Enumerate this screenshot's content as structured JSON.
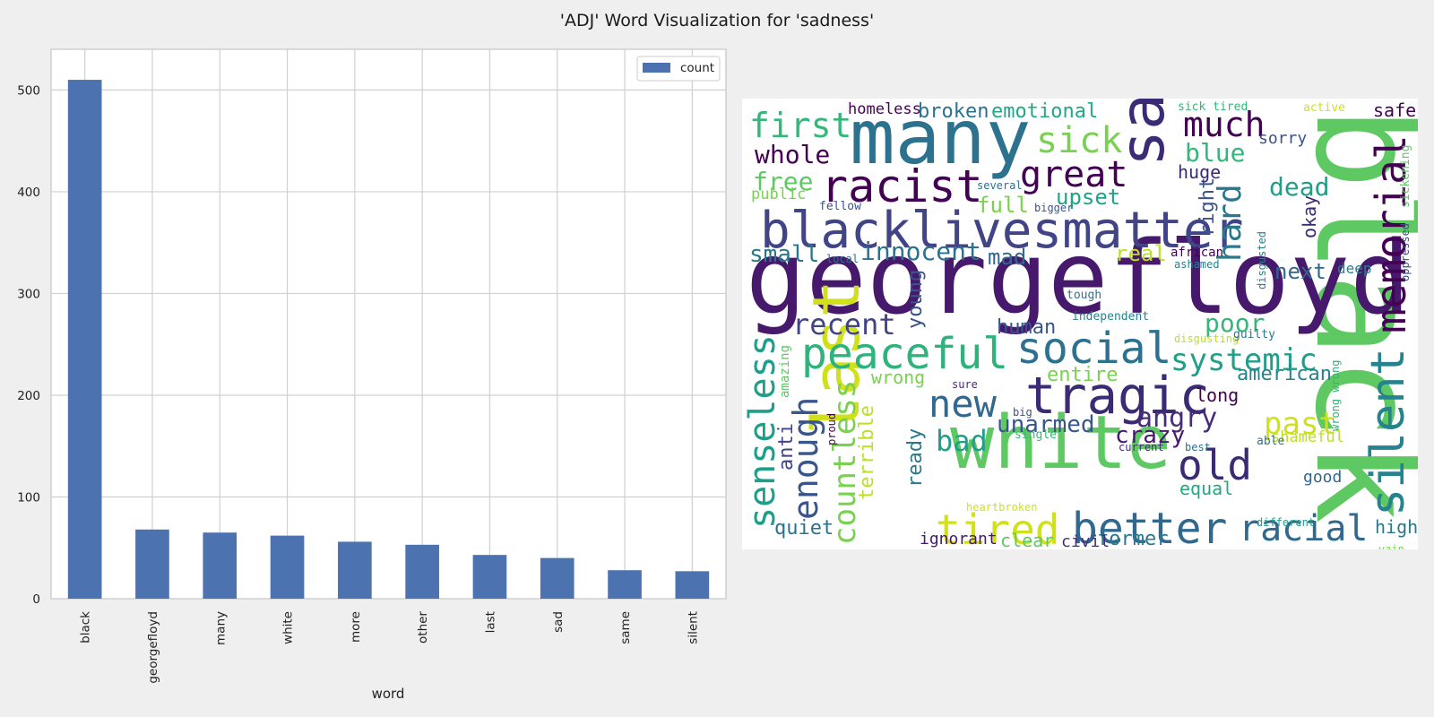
{
  "title": "'ADJ' Word Visualization for 'sadness'",
  "chart_data": [
    {
      "type": "bar",
      "categories": [
        "black",
        "georgefloyd",
        "many",
        "white",
        "more",
        "other",
        "last",
        "sad",
        "same",
        "silent"
      ],
      "series": [
        {
          "name": "count",
          "values": [
            510,
            68,
            65,
            62,
            56,
            53,
            43,
            40,
            28,
            27
          ],
          "color": "#4c72b0"
        }
      ],
      "xlabel": "word",
      "ylabel": "",
      "ylim": [
        0,
        540
      ],
      "yticks": [
        0,
        100,
        200,
        300,
        400,
        500
      ],
      "grid": true,
      "legend": "top-right"
    },
    {
      "type": "wordcloud",
      "colormap": "viridis",
      "words": [
        {
          "text": "black",
          "c": "#5ec962"
        },
        {
          "text": "georgefloyd",
          "c": "#46196c"
        },
        {
          "text": "many",
          "c": "#2c728e"
        },
        {
          "text": "white",
          "c": "#5ec962"
        },
        {
          "text": "last",
          "c": "#d0e11c"
        },
        {
          "text": "sad",
          "c": "#3b2a74"
        },
        {
          "text": "blacklivesmatter",
          "c": "#414487"
        },
        {
          "text": "tragic",
          "c": "#3b2a74"
        },
        {
          "text": "peaceful",
          "c": "#2eb37c"
        },
        {
          "text": "memorial",
          "c": "#440154"
        },
        {
          "text": "silent",
          "c": "#25838e"
        },
        {
          "text": "racist",
          "c": "#440154"
        },
        {
          "text": "social",
          "c": "#2c728e"
        },
        {
          "text": "better",
          "c": "#31688e"
        },
        {
          "text": "tired",
          "c": "#d0e11c"
        },
        {
          "text": "old",
          "c": "#3b2a74"
        },
        {
          "text": "new",
          "c": "#31688e"
        },
        {
          "text": "great",
          "c": "#440154"
        },
        {
          "text": "senseless",
          "c": "#1f9e89"
        },
        {
          "text": "first",
          "c": "#35b779"
        },
        {
          "text": "countless",
          "c": "#7ad151"
        },
        {
          "text": "enough",
          "c": "#39568c"
        },
        {
          "text": "systemic",
          "c": "#1f9e89"
        },
        {
          "text": "racial",
          "c": "#31688e"
        },
        {
          "text": "sick",
          "c": "#7ad151"
        },
        {
          "text": "much",
          "c": "#440154"
        },
        {
          "text": "past",
          "c": "#d0e11c"
        },
        {
          "text": "bad",
          "c": "#1f9e89"
        },
        {
          "text": "recent",
          "c": "#414487"
        },
        {
          "text": "hard",
          "c": "#2a788e"
        },
        {
          "text": "angry",
          "c": "#472c7a"
        },
        {
          "text": "unarmed",
          "c": "#39568c"
        },
        {
          "text": "innocent",
          "c": "#2c728e"
        },
        {
          "text": "whole",
          "c": "#440154"
        },
        {
          "text": "poor",
          "c": "#35b779"
        },
        {
          "text": "crazy",
          "c": "#46196c"
        },
        {
          "text": "blue",
          "c": "#35b779"
        },
        {
          "text": "dead",
          "c": "#1f9e89"
        },
        {
          "text": "free",
          "c": "#5ec962"
        },
        {
          "text": "emotional",
          "c": "#22a884"
        },
        {
          "text": "terrible",
          "c": "#bddf26"
        },
        {
          "text": "human",
          "c": "#39568c"
        },
        {
          "text": "small",
          "c": "#2a788e"
        },
        {
          "text": "upset",
          "c": "#20a486"
        },
        {
          "text": "full",
          "c": "#7ad151"
        },
        {
          "text": "mad",
          "c": "#31688e"
        },
        {
          "text": "next",
          "c": "#31688e"
        },
        {
          "text": "broken",
          "c": "#2c728e"
        },
        {
          "text": "young",
          "c": "#3b528b"
        },
        {
          "text": "ready",
          "c": "#2a788e"
        },
        {
          "text": "anti",
          "c": "#414487"
        },
        {
          "text": "entire",
          "c": "#7ad151"
        },
        {
          "text": "quiet",
          "c": "#2c728e"
        },
        {
          "text": "former",
          "c": "#2a788e"
        },
        {
          "text": "american",
          "c": "#25838e"
        },
        {
          "text": "wrong",
          "c": "#7ad151"
        },
        {
          "text": "real",
          "c": "#bddf26"
        },
        {
          "text": "right",
          "c": "#3b528b"
        },
        {
          "text": "long",
          "c": "#440154"
        },
        {
          "text": "huge",
          "c": "#3b2a74"
        },
        {
          "text": "equal",
          "c": "#22a884"
        },
        {
          "text": "good",
          "c": "#31688e"
        },
        {
          "text": "high",
          "c": "#2a788e"
        },
        {
          "text": "clear",
          "c": "#5ec962"
        },
        {
          "text": "civil",
          "c": "#472c7a"
        },
        {
          "text": "ignorant",
          "c": "#46196c"
        },
        {
          "text": "okay",
          "c": "#3b2a74"
        },
        {
          "text": "safe",
          "c": "#440154"
        },
        {
          "text": "sorry",
          "c": "#3b528b"
        },
        {
          "text": "deep",
          "c": "#25838e"
        },
        {
          "text": "homeless",
          "c": "#440154"
        },
        {
          "text": "public",
          "c": "#7ad151"
        },
        {
          "text": "shameful",
          "c": "#bddf26"
        },
        {
          "text": "amazing",
          "c": "#5ec962"
        },
        {
          "text": "african",
          "c": "#440154"
        },
        {
          "text": "sick tired",
          "c": "#35b779"
        },
        {
          "text": "active",
          "c": "#d0e11c"
        },
        {
          "text": "sickening",
          "c": "#5ec962"
        },
        {
          "text": "oppressed",
          "c": "#3b528b"
        },
        {
          "text": "disgusted",
          "c": "#25838e"
        },
        {
          "text": "wrong wrong",
          "c": "#2eb37c"
        },
        {
          "text": "several",
          "c": "#2c728e"
        },
        {
          "text": "fellow",
          "c": "#3b528b"
        },
        {
          "text": "bigger",
          "c": "#39568c"
        },
        {
          "text": "local",
          "c": "#2c728e"
        },
        {
          "text": "ashamed",
          "c": "#25838e"
        },
        {
          "text": "tough",
          "c": "#2c728e"
        },
        {
          "text": "independent",
          "c": "#25838e"
        },
        {
          "text": "disgusting",
          "c": "#bddf26"
        },
        {
          "text": "guilty",
          "c": "#2a788e"
        },
        {
          "text": "sure",
          "c": "#472c7a"
        },
        {
          "text": "big",
          "c": "#3b528b"
        },
        {
          "text": "proud",
          "c": "#440154"
        },
        {
          "text": "single",
          "c": "#35b779"
        },
        {
          "text": "current",
          "c": "#472c7a"
        },
        {
          "text": "best",
          "c": "#2c728e"
        },
        {
          "text": "able",
          "c": "#2c728e"
        },
        {
          "text": "heartbroken",
          "c": "#d0e11c"
        },
        {
          "text": "different",
          "c": "#1f9e89"
        },
        {
          "text": "vain",
          "c": "#7ad151"
        }
      ]
    }
  ]
}
